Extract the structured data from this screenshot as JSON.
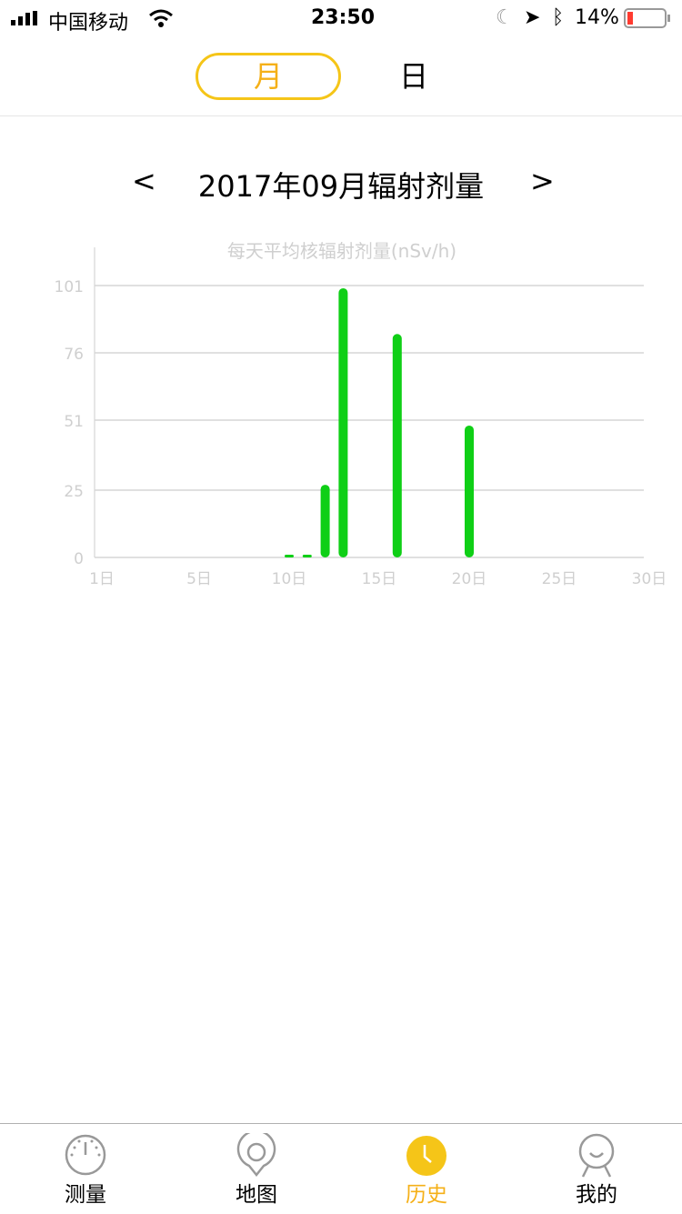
{
  "status_bar": {
    "carrier": "中国移动",
    "time": "23:50",
    "battery": "14%"
  },
  "segmented": {
    "month": "月",
    "day": "日",
    "selected": "month"
  },
  "nav": {
    "prev": "<",
    "title": "2017年09月辐射剂量",
    "next": ">"
  },
  "chart_data": {
    "type": "bar",
    "title": "每天平均核辐射剂量(nSv/h)",
    "x_tick_labels": [
      "1日",
      "5日",
      "10日",
      "15日",
      "20日",
      "25日",
      "30日"
    ],
    "x_ticks": [
      1,
      5,
      10,
      15,
      20,
      25,
      30
    ],
    "y_ticks": [
      0,
      25,
      51,
      76,
      101
    ],
    "ylim": [
      0,
      101
    ],
    "grid": true,
    "bar_color": "#0fcf16",
    "x": [
      10,
      11,
      12,
      13,
      16,
      20
    ],
    "values": [
      0.3,
      1,
      27,
      100,
      83,
      49
    ]
  },
  "tabbar": {
    "items": [
      {
        "label": "测量",
        "icon": "gauge-icon"
      },
      {
        "label": "地图",
        "icon": "map-pin-icon"
      },
      {
        "label": "历史",
        "icon": "clock-icon",
        "active": true
      },
      {
        "label": "我的",
        "icon": "person-icon"
      }
    ],
    "active_color": "#f5b018"
  }
}
